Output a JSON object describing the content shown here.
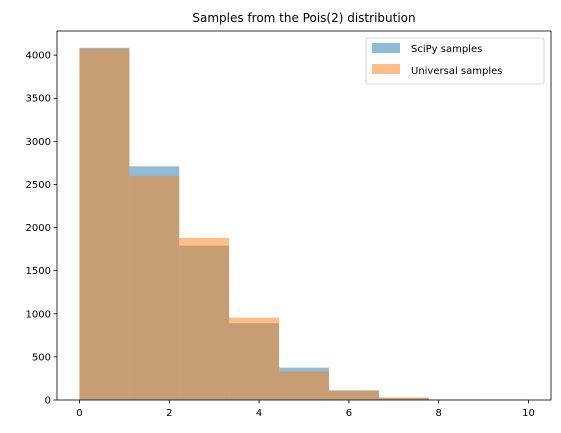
{
  "chart_data": {
    "type": "bar",
    "title": "Samples from the Pois(2) distribution",
    "xlabel": "",
    "ylabel": "",
    "xlim": [
      -0.5,
      10.5
    ],
    "ylim": [
      0,
      4280
    ],
    "xticks": [
      0,
      2,
      4,
      6,
      8,
      10
    ],
    "yticks": [
      0,
      500,
      1000,
      1500,
      2000,
      2500,
      3000,
      3500,
      4000
    ],
    "bin_edges": [
      0,
      1.111,
      2.222,
      3.333,
      4.444,
      5.556,
      6.667,
      7.778,
      8.889,
      10
    ],
    "series": [
      {
        "name": "SciPy samples",
        "color": "#1f77b4",
        "opacity": 0.5,
        "values": [
          4085,
          2710,
          1790,
          890,
          375,
          110,
          22,
          5,
          2
        ]
      },
      {
        "name": "Universal samples",
        "color": "#ff7f0e",
        "opacity": 0.5,
        "values": [
          4075,
          2600,
          1880,
          955,
          330,
          112,
          30,
          6,
          2
        ]
      }
    ],
    "legend": "top-right",
    "grid": false
  }
}
